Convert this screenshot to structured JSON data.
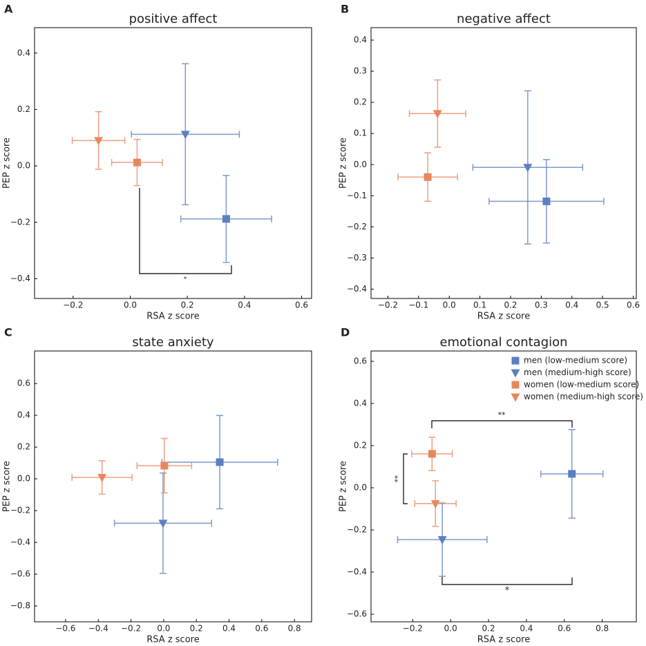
{
  "chart_data": [
    {
      "type": "scatter",
      "label": "A",
      "title": "positive affect",
      "xlabel": "RSA z score",
      "ylabel": "PEP z score",
      "xlim": [
        -0.335,
        0.635
      ],
      "ylim": [
        -0.47,
        0.49
      ],
      "xticks": [
        {
          "value": -0.2,
          "label": "−0.2"
        },
        {
          "value": 0,
          "label": "0.0"
        },
        0.2,
        0.4,
        0.6
      ],
      "yticks": [
        {
          "value": -0.4,
          "label": "−0.4"
        },
        {
          "value": -0.2,
          "label": "−0.2"
        },
        {
          "value": 0,
          "label": "0.0"
        },
        0.2,
        0.4
      ],
      "series": [
        {
          "color": "#5b80c1",
          "marker": "square",
          "x": [
            0.336
          ],
          "values": [
            -0.188
          ],
          "xerr": [
            0.159
          ],
          "yerr": [
            0.154
          ]
        },
        {
          "color": "#5b80c1",
          "marker": "triangle",
          "x": [
            0.193
          ],
          "values": [
            0.112
          ],
          "xerr": [
            0.189
          ],
          "yerr": [
            0.25
          ]
        },
        {
          "color": "#e8875d",
          "marker": "square",
          "x": [
            0.024
          ],
          "values": [
            0.012
          ],
          "xerr": [
            0.089
          ],
          "yerr": [
            0.082
          ]
        },
        {
          "color": "#e8875d",
          "marker": "triangle",
          "x": [
            -0.111
          ],
          "values": [
            0.09
          ],
          "xerr": [
            0.092
          ],
          "yerr": [
            0.102
          ]
        }
      ],
      "annotations": [
        {
          "text": "*"
        }
      ]
    },
    {
      "type": "scatter",
      "label": "B",
      "title": "negative affect",
      "xlabel": "RSA z score",
      "ylabel": "PEP z score",
      "xlim": [
        -0.255,
        0.61
      ],
      "ylim": [
        -0.43,
        0.44
      ],
      "xticks": [
        {
          "value": -0.2,
          "label": "−0.2"
        },
        {
          "value": -0.1,
          "label": "−0.1"
        },
        {
          "value": 0,
          "label": "0.0"
        },
        0.1,
        0.2,
        0.3,
        0.4,
        0.5,
        0.6
      ],
      "yticks": [
        {
          "value": -0.4,
          "label": "−0.4"
        },
        {
          "value": -0.3,
          "label": "−0.3"
        },
        {
          "value": -0.2,
          "label": "−0.2"
        },
        {
          "value": -0.1,
          "label": "−0.1"
        },
        {
          "value": 0,
          "label": "0.0"
        },
        0.1,
        0.2,
        0.3,
        0.4
      ],
      "series": [
        {
          "color": "#5b80c1",
          "marker": "square",
          "x": [
            0.317
          ],
          "values": [
            -0.118
          ],
          "xerr": [
            0.187
          ],
          "yerr": [
            0.134
          ]
        },
        {
          "color": "#5b80c1",
          "marker": "triangle",
          "x": [
            0.256
          ],
          "values": [
            -0.009
          ],
          "xerr": [
            0.179
          ],
          "yerr": [
            0.246
          ]
        },
        {
          "color": "#e8875d",
          "marker": "square",
          "x": [
            -0.07
          ],
          "values": [
            -0.04
          ],
          "xerr": [
            0.097
          ],
          "yerr": [
            0.078
          ]
        },
        {
          "color": "#e8875d",
          "marker": "triangle",
          "x": [
            -0.038
          ],
          "values": [
            0.164
          ],
          "xerr": [
            0.092
          ],
          "yerr": [
            0.108
          ]
        }
      ],
      "annotations": []
    },
    {
      "type": "scatter",
      "label": "C",
      "title": "state anxiety",
      "xlabel": "RSA z score",
      "ylabel": "PEP z score",
      "xlim": [
        -0.79,
        0.905
      ],
      "ylim": [
        -0.9,
        0.805
      ],
      "xticks": [
        {
          "value": -0.6,
          "label": "−0.6"
        },
        {
          "value": -0.4,
          "label": "−0.4"
        },
        {
          "value": -0.2,
          "label": "−0.2"
        },
        {
          "value": 0,
          "label": "0.0"
        },
        0.2,
        0.4,
        0.6,
        0.8
      ],
      "yticks": [
        {
          "value": -0.8,
          "label": "−0.8"
        },
        {
          "value": -0.6,
          "label": "−0.6"
        },
        {
          "value": -0.4,
          "label": "−0.4"
        },
        {
          "value": -0.2,
          "label": "−0.2"
        },
        {
          "value": 0,
          "label": "0.0"
        },
        0.2,
        0.4,
        0.6
      ],
      "series": [
        {
          "color": "#5b80c1",
          "marker": "square",
          "x": [
            0.343
          ],
          "values": [
            0.105
          ],
          "xerr": [
            0.354
          ],
          "yerr": [
            0.294
          ]
        },
        {
          "color": "#5b80c1",
          "marker": "triangle",
          "x": [
            -0.004
          ],
          "values": [
            -0.279
          ],
          "xerr": [
            0.297
          ],
          "yerr": [
            0.316
          ]
        },
        {
          "color": "#e8875d",
          "marker": "square",
          "x": [
            0.004
          ],
          "values": [
            0.083
          ],
          "xerr": [
            0.167
          ],
          "yerr": [
            0.172
          ]
        },
        {
          "color": "#e8875d",
          "marker": "triangle",
          "x": [
            -0.377
          ],
          "values": [
            0.009
          ],
          "xerr": [
            0.184
          ],
          "yerr": [
            0.105
          ]
        }
      ],
      "annotations": []
    },
    {
      "type": "scatter",
      "label": "D",
      "title": "emotional contagion",
      "xlabel": "RSA z score",
      "ylabel": "PEP z score",
      "xlim": [
        -0.42,
        0.98
      ],
      "ylim": [
        -0.636,
        0.649
      ],
      "legend": "upper right",
      "xticks": [
        {
          "value": -0.2,
          "label": "−0.2"
        },
        {
          "value": 0,
          "label": "0.0"
        },
        0.2,
        0.4,
        0.6,
        0.8
      ],
      "yticks": [
        {
          "value": -0.6,
          "label": "−0.6"
        },
        {
          "value": -0.4,
          "label": "−0.4"
        },
        {
          "value": -0.2,
          "label": "−0.2"
        },
        {
          "value": 0,
          "label": "0.0"
        },
        0.2,
        0.4,
        0.6
      ],
      "series": [
        {
          "name": "men (low-medium score)",
          "color": "#5b80c1",
          "marker": "square",
          "x": [
            0.64
          ],
          "values": [
            0.066
          ],
          "xerr": [
            0.164
          ],
          "yerr": [
            0.21
          ]
        },
        {
          "name": "men (medium-high score)",
          "color": "#5b80c1",
          "marker": "triangle",
          "x": [
            -0.044
          ],
          "values": [
            -0.246
          ],
          "xerr": [
            0.236
          ],
          "yerr": [
            0.174
          ]
        },
        {
          "name": "women (low-medium score)",
          "color": "#e8875d",
          "marker": "square",
          "x": [
            -0.098
          ],
          "values": [
            0.161
          ],
          "xerr": [
            0.107
          ],
          "yerr": [
            0.079
          ]
        },
        {
          "name": "women (medium-high score)",
          "color": "#e8875d",
          "marker": "triangle",
          "x": [
            -0.08
          ],
          "values": [
            -0.075
          ],
          "xerr": [
            0.109
          ],
          "yerr": [
            0.108
          ]
        }
      ],
      "annotations": [
        {
          "text": "**"
        },
        {
          "text": "**"
        },
        {
          "text": "*"
        }
      ]
    }
  ]
}
